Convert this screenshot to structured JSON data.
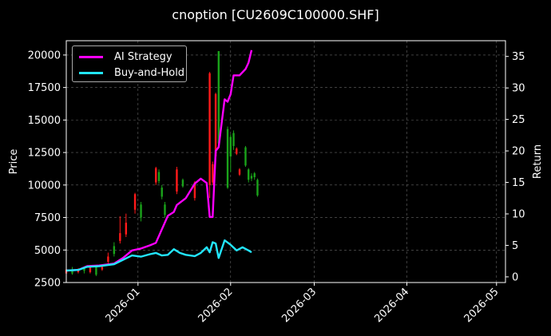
{
  "title": "cnoption [CU2609C100000.SHF]",
  "chart_data": {
    "type": "line",
    "title": "cnoption [CU2609C100000.SHF]",
    "x_ticks": [
      "2026-01",
      "2026-02",
      "2026-03",
      "2026-04",
      "2026-05"
    ],
    "x_tick_dates": [
      "2026-01-01",
      "2026-02-01",
      "2026-03-01",
      "2026-04-01",
      "2026-05-01"
    ],
    "xlim": [
      "2025-12-08",
      "2026-05-04"
    ],
    "ylabel_left": "Price",
    "ylabel_right": "Return",
    "ylim_left": [
      2500,
      21100
    ],
    "yticks_left": [
      2500,
      5000,
      7500,
      10000,
      12500,
      15000,
      17500,
      20000
    ],
    "ylim_right": [
      -0.9,
      37.5
    ],
    "yticks_right": [
      0,
      5,
      10,
      15,
      20,
      25,
      30,
      35
    ],
    "grid": true,
    "legend_position": "top-left",
    "series": [
      {
        "name": "AI Strategy",
        "color": "#ff00ff",
        "axis": "right",
        "points": [
          [
            "2025-12-08",
            1.0
          ],
          [
            "2025-12-12",
            1.1
          ],
          [
            "2025-12-15",
            1.7
          ],
          [
            "2025-12-19",
            1.8
          ],
          [
            "2025-12-24",
            2.1
          ],
          [
            "2025-12-27",
            3.0
          ],
          [
            "2025-12-30",
            4.2
          ],
          [
            "2026-01-02",
            4.5
          ],
          [
            "2026-01-05",
            5.0
          ],
          [
            "2026-01-07",
            5.4
          ],
          [
            "2026-01-11",
            9.7
          ],
          [
            "2026-01-13",
            10.3
          ],
          [
            "2026-01-14",
            11.4
          ],
          [
            "2026-01-17",
            12.5
          ],
          [
            "2026-01-20",
            14.8
          ],
          [
            "2026-01-22",
            15.6
          ],
          [
            "2026-01-24",
            14.9
          ],
          [
            "2026-01-25",
            9.5
          ],
          [
            "2026-01-26",
            9.5
          ],
          [
            "2026-01-27",
            20.0
          ],
          [
            "2026-01-28",
            20.6
          ],
          [
            "2026-01-30",
            28.2
          ],
          [
            "2026-01-31",
            27.8
          ],
          [
            "2026-02-01",
            29.0
          ],
          [
            "2026-02-02",
            32.0
          ],
          [
            "2026-02-04",
            32.0
          ],
          [
            "2026-02-06",
            33.0
          ],
          [
            "2026-02-07",
            34.0
          ],
          [
            "2026-02-08",
            36.0
          ]
        ]
      },
      {
        "name": "Buy-and-Hold",
        "color": "#22e6ff",
        "axis": "right",
        "points": [
          [
            "2025-12-08",
            1.0
          ],
          [
            "2025-12-12",
            1.1
          ],
          [
            "2025-12-15",
            1.6
          ],
          [
            "2025-12-19",
            1.7
          ],
          [
            "2025-12-24",
            2.0
          ],
          [
            "2025-12-27",
            2.7
          ],
          [
            "2025-12-30",
            3.4
          ],
          [
            "2026-01-02",
            3.2
          ],
          [
            "2026-01-05",
            3.6
          ],
          [
            "2026-01-07",
            3.8
          ],
          [
            "2026-01-09",
            3.4
          ],
          [
            "2026-01-11",
            3.5
          ],
          [
            "2026-01-13",
            4.4
          ],
          [
            "2026-01-15",
            3.8
          ],
          [
            "2026-01-17",
            3.5
          ],
          [
            "2026-01-20",
            3.3
          ],
          [
            "2026-01-22",
            3.8
          ],
          [
            "2026-01-24",
            4.7
          ],
          [
            "2026-01-25",
            3.9
          ],
          [
            "2026-01-26",
            5.5
          ],
          [
            "2026-01-27",
            5.3
          ],
          [
            "2026-01-28",
            3.0
          ],
          [
            "2026-01-30",
            5.8
          ],
          [
            "2026-02-01",
            5.1
          ],
          [
            "2026-02-03",
            4.2
          ],
          [
            "2026-02-05",
            4.7
          ],
          [
            "2026-02-07",
            4.2
          ],
          [
            "2026-02-08",
            3.9
          ]
        ]
      }
    ],
    "candles": [
      {
        "date": "2025-12-08",
        "open": 3200,
        "close": 3500,
        "high": 3600,
        "low": 2800,
        "direction": "up"
      },
      {
        "date": "2025-12-10",
        "open": 3500,
        "close": 3200,
        "high": 3700,
        "low": 3100,
        "direction": "down"
      },
      {
        "date": "2025-12-12",
        "open": 3300,
        "close": 3500,
        "high": 3600,
        "low": 3200,
        "direction": "up"
      },
      {
        "date": "2025-12-14",
        "open": 3600,
        "close": 3400,
        "high": 3700,
        "low": 3200,
        "direction": "down"
      },
      {
        "date": "2025-12-16",
        "open": 3300,
        "close": 3700,
        "high": 3800,
        "low": 3200,
        "direction": "up"
      },
      {
        "date": "2025-12-18",
        "open": 3700,
        "close": 3100,
        "high": 3800,
        "low": 3000,
        "direction": "down"
      },
      {
        "date": "2025-12-20",
        "open": 3500,
        "close": 3700,
        "high": 3800,
        "low": 3400,
        "direction": "up"
      },
      {
        "date": "2025-12-22",
        "open": 4100,
        "close": 4500,
        "high": 4800,
        "low": 3900,
        "direction": "up"
      },
      {
        "date": "2025-12-24",
        "open": 5300,
        "close": 4700,
        "high": 5600,
        "low": 4500,
        "direction": "down"
      },
      {
        "date": "2025-12-26",
        "open": 5700,
        "close": 6300,
        "high": 7600,
        "low": 5500,
        "direction": "up"
      },
      {
        "date": "2025-12-28",
        "open": 6200,
        "close": 7100,
        "high": 7800,
        "low": 6000,
        "direction": "up"
      },
      {
        "date": "2025-12-31",
        "open": 8100,
        "close": 9300,
        "high": 9400,
        "low": 7800,
        "direction": "up"
      },
      {
        "date": "2026-01-02",
        "open": 8500,
        "close": 7500,
        "high": 8700,
        "low": 7200,
        "direction": "down"
      },
      {
        "date": "2026-01-07",
        "open": 10200,
        "close": 11300,
        "high": 11400,
        "low": 10000,
        "direction": "up"
      },
      {
        "date": "2026-01-08",
        "open": 11000,
        "close": 10300,
        "high": 11200,
        "low": 10100,
        "direction": "down"
      },
      {
        "date": "2026-01-09",
        "open": 9800,
        "close": 9100,
        "high": 10000,
        "low": 8900,
        "direction": "down"
      },
      {
        "date": "2026-01-10",
        "open": 8500,
        "close": 7700,
        "high": 8700,
        "low": 7500,
        "direction": "down"
      },
      {
        "date": "2026-01-14",
        "open": 9500,
        "close": 11200,
        "high": 11400,
        "low": 9300,
        "direction": "up"
      },
      {
        "date": "2026-01-16",
        "open": 10400,
        "close": 9900,
        "high": 10500,
        "low": 9800,
        "direction": "down"
      },
      {
        "date": "2026-01-20",
        "open": 9000,
        "close": 10200,
        "high": 10300,
        "low": 8800,
        "direction": "up"
      },
      {
        "date": "2026-01-25",
        "open": 18600,
        "close": 10000,
        "high": 18700,
        "low": 9000,
        "direction": "up"
      },
      {
        "date": "2026-01-26",
        "open": 10200,
        "close": 11600,
        "high": 11800,
        "low": 10000,
        "direction": "up"
      },
      {
        "date": "2026-01-27",
        "open": 17000,
        "close": 12200,
        "high": 17100,
        "low": 11800,
        "direction": "up"
      },
      {
        "date": "2026-01-28",
        "open": 20300,
        "close": 13200,
        "high": 20300,
        "low": 12800,
        "direction": "down"
      },
      {
        "date": "2026-01-31",
        "open": 14300,
        "close": 9800,
        "high": 14500,
        "low": 9700,
        "direction": "down"
      },
      {
        "date": "2026-02-01",
        "open": 13700,
        "close": 12200,
        "high": 13900,
        "low": 11000,
        "direction": "down"
      },
      {
        "date": "2026-02-02",
        "open": 14000,
        "close": 13000,
        "high": 14200,
        "low": 12700,
        "direction": "down"
      },
      {
        "date": "2026-02-03",
        "open": 12800,
        "close": 12400,
        "high": 12900,
        "low": 12300,
        "direction": "up"
      },
      {
        "date": "2026-02-04",
        "open": 11200,
        "close": 10800,
        "high": 11300,
        "low": 10700,
        "direction": "up"
      },
      {
        "date": "2026-02-06",
        "open": 12900,
        "close": 11500,
        "high": 13000,
        "low": 11400,
        "direction": "down"
      },
      {
        "date": "2026-02-07",
        "open": 11200,
        "close": 10400,
        "high": 11300,
        "low": 10200,
        "direction": "down"
      },
      {
        "date": "2026-02-08",
        "open": 10700,
        "close": 10500,
        "high": 10900,
        "low": 10300,
        "direction": "down"
      },
      {
        "date": "2026-02-09",
        "open": 10900,
        "close": 10600,
        "high": 11000,
        "low": 10400,
        "direction": "down"
      },
      {
        "date": "2026-02-10",
        "open": 10400,
        "close": 9200,
        "high": 10500,
        "low": 9100,
        "direction": "down"
      }
    ]
  }
}
